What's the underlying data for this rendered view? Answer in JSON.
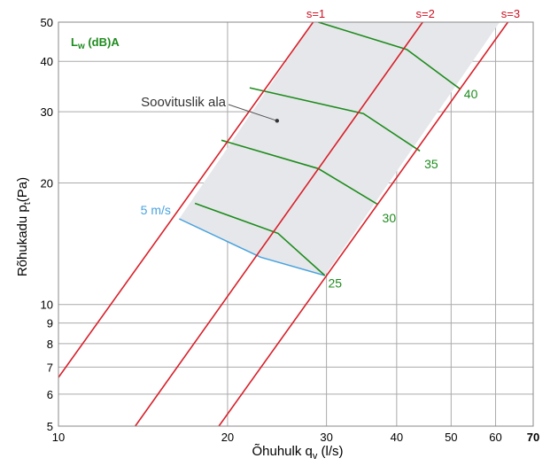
{
  "chart_data": {
    "type": "line",
    "x_scale": "log",
    "y_scale": "log",
    "xlim": [
      10,
      70
    ],
    "ylim": [
      5,
      50
    ],
    "x_ticks": [
      "10",
      "20",
      "30",
      "40",
      "50",
      "60",
      "70"
    ],
    "x_tick_values": [
      10,
      20,
      30,
      40,
      50,
      60,
      70
    ],
    "x_grid": [
      10,
      20,
      30,
      40,
      50,
      60,
      70
    ],
    "y_ticks": [
      "5",
      "6",
      "7",
      "8",
      "9",
      "10",
      "20",
      "30",
      "40",
      "50"
    ],
    "y_tick_values": [
      5,
      6,
      7,
      8,
      9,
      10,
      20,
      30,
      40,
      50
    ],
    "y_grid": [
      5,
      6,
      7,
      8,
      9,
      10,
      20,
      30,
      40,
      50
    ],
    "xlabel": {
      "main": "Õhuhulk q",
      "sub": "v",
      "unit": " (l/s)"
    },
    "ylabel": {
      "main": "Rõhukadu p",
      "sub": "t",
      "unit": "(Pa)"
    },
    "grid": true,
    "legend_label": {
      "main": "L",
      "sub": "w",
      "unit": " (dB)A"
    },
    "region_label": "Soovituslik ala",
    "region_point": [
      24.5,
      28.5
    ],
    "region": [
      [
        16.4,
        16.3
      ],
      [
        28.4,
        50
      ],
      [
        61.0,
        50
      ],
      [
        29.8,
        11.8
      ],
      [
        22.9,
        13.1
      ]
    ],
    "system_curves": [
      {
        "name": "s=1",
        "points": [
          [
            10.0,
            6.6
          ],
          [
            28.4,
            50
          ]
        ]
      },
      {
        "name": "s=2",
        "points": [
          [
            13.7,
            5.0
          ],
          [
            44.5,
            50
          ]
        ]
      },
      {
        "name": "s=3",
        "points": [
          [
            19.3,
            5.0
          ],
          [
            63.1,
            50
          ]
        ]
      }
    ],
    "sound_lines": [
      {
        "name": "25",
        "label_at": [
          30.2,
          11.3
        ],
        "points": [
          [
            17.5,
            17.8
          ],
          [
            24.6,
            15.0
          ],
          [
            29.8,
            11.8
          ]
        ]
      },
      {
        "name": "30",
        "label_at": [
          37.7,
          16.4
        ],
        "points": [
          [
            19.5,
            25.5
          ],
          [
            29.0,
            21.7
          ],
          [
            37.0,
            17.7
          ]
        ]
      },
      {
        "name": "35",
        "label_at": [
          44.8,
          22.3
        ],
        "points": [
          [
            21.9,
            34.4
          ],
          [
            34.9,
            29.7
          ],
          [
            44.0,
            24.0
          ]
        ]
      },
      {
        "name": "40",
        "label_at": [
          52.7,
          33.2
        ],
        "points": [
          [
            29.0,
            50.0
          ],
          [
            41.7,
            42.8
          ],
          [
            51.8,
            34.2
          ]
        ]
      }
    ],
    "velocity_lines": [
      {
        "name": "5 m/s",
        "label_at": [
          14.0,
          16.4
        ],
        "points": [
          [
            16.4,
            16.3
          ],
          [
            22.9,
            13.1
          ],
          [
            29.8,
            11.8
          ]
        ]
      }
    ],
    "colors": {
      "grid": "#aaaaaa",
      "system_curve": "#d8202a",
      "sound": "#1e8c1e",
      "velocity": "#4aa3df",
      "region_fill": "#e6e7ea",
      "region_point": "#333333"
    }
  }
}
